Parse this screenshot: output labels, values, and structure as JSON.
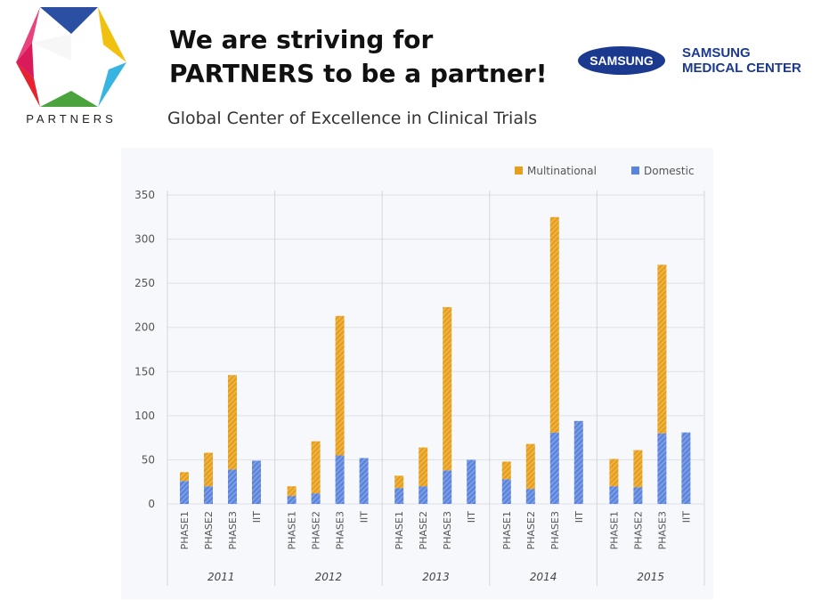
{
  "header": {
    "headline_line1": "We are striving for",
    "headline_line2": "PARTNERS to be a partner!",
    "subtitle": "Global Center of Excellence in Clinical Trials"
  },
  "logos": {
    "partners_label": "PARTNERS",
    "samsung_wordmark": "SAMSUNG",
    "smc_line1": "SAMSUNG",
    "smc_line2": "MEDICAL CENTER"
  },
  "colors": {
    "multinational": "#e79f1a",
    "domestic": "#5b84dc",
    "samsung_blue": "#1b3a8f"
  },
  "chart_data": {
    "type": "bar",
    "stacked": true,
    "title": "",
    "xlabel": "",
    "ylabel": "",
    "ylim": [
      0,
      350
    ],
    "yticks": [
      0,
      50,
      100,
      150,
      200,
      250,
      300,
      350
    ],
    "grid": true,
    "legend_position": "top-right",
    "groups": [
      "2011",
      "2012",
      "2013",
      "2014",
      "2015"
    ],
    "categories": [
      "PHASE1",
      "PHASE2",
      "PHASE3",
      "IIT"
    ],
    "series": [
      {
        "name": "Domestic",
        "values": [
          [
            26,
            20,
            39,
            49
          ],
          [
            9,
            12,
            55,
            52
          ],
          [
            18,
            20,
            38,
            50
          ],
          [
            28,
            17,
            81,
            94
          ],
          [
            20,
            19,
            80,
            81
          ]
        ]
      },
      {
        "name": "Multinational",
        "values": [
          [
            10,
            38,
            107,
            0
          ],
          [
            11,
            59,
            158,
            0
          ],
          [
            14,
            44,
            185,
            0
          ],
          [
            20,
            51,
            244,
            0
          ],
          [
            31,
            42,
            191,
            0
          ]
        ]
      }
    ]
  }
}
